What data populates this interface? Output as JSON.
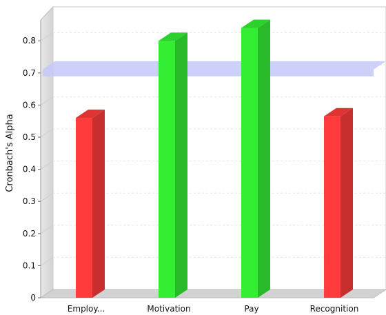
{
  "chart_data": {
    "type": "bar",
    "title": "",
    "xlabel": "",
    "ylabel": "Cronbach's Alpha",
    "ylim": [
      0,
      0.88
    ],
    "yticks": [
      "0",
      "0.1",
      "0.2",
      "0.3",
      "0.4",
      "0.5",
      "0.6",
      "0.7",
      "0.8"
    ],
    "grid": true,
    "categories": [
      "Employ...",
      "Motivation",
      "Pay",
      "Recognition"
    ],
    "values": [
      0.56,
      0.8,
      0.84,
      0.565
    ],
    "bar_colors": [
      "#ff3b3b",
      "#33ee33",
      "#33ee33",
      "#ff3b3b"
    ],
    "threshold": {
      "value": 0.7,
      "color": "#c4c8f8"
    }
  }
}
